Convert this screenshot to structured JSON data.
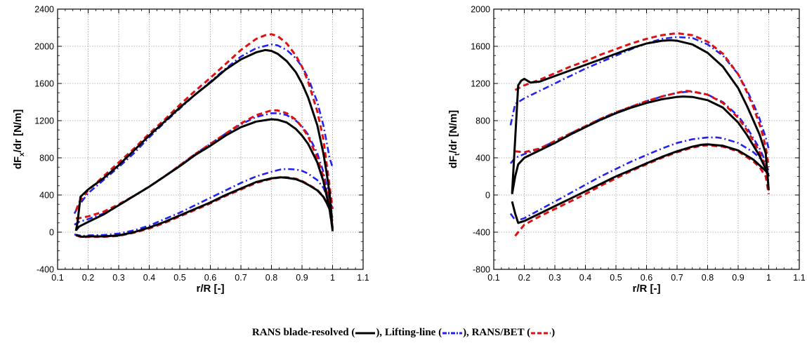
{
  "chart_data": [
    {
      "type": "line",
      "title": "",
      "xlabel": "r/R [-]",
      "ylabel_main": "dF",
      "ylabel_sub": "x",
      "ylabel_rest": "/dr [N/m]",
      "xlim": [
        0.1,
        1.1
      ],
      "ylim": [
        -400,
        2400
      ],
      "xticks": [
        "0.1",
        "0.2",
        "0.3",
        "0.4",
        "0.5",
        "0.6",
        "0.7",
        "0.8",
        "0.9",
        "1",
        "1.1"
      ],
      "yticks": [
        "-400",
        "0",
        "400",
        "800",
        "1200",
        "1600",
        "2000",
        "2400"
      ],
      "grid": true,
      "series": [
        {
          "style": "rans",
          "group": "high",
          "x": [
            0.16,
            0.165,
            0.175,
            0.2,
            0.25,
            0.3,
            0.35,
            0.4,
            0.45,
            0.5,
            0.55,
            0.6,
            0.65,
            0.7,
            0.75,
            0.78,
            0.8,
            0.82,
            0.85,
            0.88,
            0.9,
            0.92,
            0.95,
            0.97,
            0.98,
            0.99,
            0.995,
            1.0
          ],
          "y": [
            15,
            100,
            380,
            460,
            580,
            720,
            880,
            1040,
            1190,
            1340,
            1480,
            1610,
            1750,
            1860,
            1935,
            1960,
            1950,
            1920,
            1840,
            1720,
            1600,
            1450,
            1150,
            850,
            650,
            420,
            250,
            10
          ]
        },
        {
          "style": "ll",
          "group": "high",
          "x": [
            0.155,
            0.17,
            0.2,
            0.25,
            0.3,
            0.35,
            0.4,
            0.45,
            0.5,
            0.55,
            0.6,
            0.65,
            0.7,
            0.75,
            0.8,
            0.82,
            0.85,
            0.88,
            0.9,
            0.92,
            0.95,
            0.97,
            0.98,
            0.99,
            1.0
          ],
          "y": [
            200,
            290,
            420,
            560,
            700,
            850,
            1020,
            1180,
            1330,
            1480,
            1620,
            1760,
            1890,
            1980,
            2020,
            2010,
            1960,
            1870,
            1780,
            1660,
            1400,
            1150,
            980,
            800,
            700
          ]
        },
        {
          "style": "bet",
          "group": "high",
          "x": [
            0.16,
            0.17,
            0.2,
            0.25,
            0.3,
            0.35,
            0.4,
            0.45,
            0.5,
            0.55,
            0.6,
            0.65,
            0.7,
            0.75,
            0.78,
            0.8,
            0.82,
            0.85,
            0.88,
            0.9,
            0.92,
            0.95,
            0.97,
            0.98,
            0.99,
            1.0
          ],
          "y": [
            230,
            320,
            450,
            600,
            750,
            900,
            1060,
            1210,
            1370,
            1520,
            1660,
            1810,
            1960,
            2080,
            2120,
            2130,
            2110,
            2030,
            1900,
            1780,
            1620,
            1300,
            1000,
            750,
            500,
            250
          ]
        },
        {
          "style": "rans",
          "group": "mid",
          "x": [
            0.16,
            0.17,
            0.2,
            0.25,
            0.3,
            0.35,
            0.4,
            0.45,
            0.5,
            0.55,
            0.6,
            0.65,
            0.7,
            0.75,
            0.8,
            0.82,
            0.85,
            0.88,
            0.9,
            0.92,
            0.95,
            0.97,
            0.98,
            0.99,
            1.0
          ],
          "y": [
            20,
            60,
            110,
            190,
            290,
            390,
            490,
            600,
            710,
            830,
            930,
            1040,
            1130,
            1190,
            1215,
            1210,
            1180,
            1110,
            1040,
            950,
            750,
            550,
            400,
            250,
            50
          ]
        },
        {
          "style": "ll",
          "group": "mid",
          "x": [
            0.155,
            0.17,
            0.2,
            0.25,
            0.3,
            0.35,
            0.4,
            0.45,
            0.5,
            0.55,
            0.6,
            0.65,
            0.7,
            0.75,
            0.8,
            0.82,
            0.85,
            0.88,
            0.9,
            0.92,
            0.95,
            0.97,
            0.98,
            0.99,
            1.0
          ],
          "y": [
            80,
            110,
            140,
            200,
            290,
            390,
            490,
            600,
            720,
            840,
            950,
            1060,
            1160,
            1240,
            1280,
            1280,
            1260,
            1200,
            1140,
            1050,
            850,
            650,
            500,
            350,
            250
          ]
        },
        {
          "style": "bet",
          "group": "mid",
          "x": [
            0.16,
            0.17,
            0.2,
            0.25,
            0.3,
            0.35,
            0.4,
            0.45,
            0.5,
            0.55,
            0.6,
            0.65,
            0.7,
            0.75,
            0.8,
            0.82,
            0.85,
            0.88,
            0.9,
            0.92,
            0.95,
            0.97,
            0.98,
            0.99,
            1.0
          ],
          "y": [
            150,
            150,
            170,
            220,
            300,
            390,
            490,
            600,
            720,
            840,
            950,
            1060,
            1170,
            1260,
            1310,
            1310,
            1280,
            1210,
            1130,
            1030,
            800,
            600,
            450,
            300,
            100
          ]
        },
        {
          "style": "rans",
          "group": "low",
          "x": [
            0.16,
            0.18,
            0.2,
            0.25,
            0.3,
            0.35,
            0.4,
            0.45,
            0.5,
            0.55,
            0.6,
            0.65,
            0.7,
            0.75,
            0.8,
            0.83,
            0.85,
            0.88,
            0.9,
            0.92,
            0.95,
            0.97,
            0.98,
            0.99,
            1.0
          ],
          "y": [
            -30,
            -50,
            -45,
            -45,
            -35,
            0,
            50,
            110,
            180,
            250,
            320,
            400,
            470,
            540,
            580,
            590,
            585,
            570,
            545,
            510,
            450,
            380,
            320,
            250,
            30
          ]
        },
        {
          "style": "ll",
          "group": "low",
          "x": [
            0.155,
            0.18,
            0.2,
            0.25,
            0.3,
            0.35,
            0.4,
            0.45,
            0.5,
            0.55,
            0.6,
            0.65,
            0.7,
            0.75,
            0.8,
            0.83,
            0.85,
            0.88,
            0.9,
            0.92,
            0.95,
            0.97,
            0.98,
            0.99,
            1.0
          ],
          "y": [
            -25,
            -40,
            -35,
            -30,
            -15,
            20,
            70,
            140,
            210,
            290,
            370,
            450,
            530,
            600,
            650,
            675,
            680,
            675,
            660,
            630,
            560,
            480,
            400,
            300,
            150
          ]
        },
        {
          "style": "bet",
          "group": "low",
          "x": [
            0.16,
            0.18,
            0.2,
            0.25,
            0.3,
            0.35,
            0.4,
            0.45,
            0.5,
            0.55,
            0.6,
            0.65,
            0.7,
            0.75,
            0.8,
            0.83,
            0.85,
            0.88,
            0.9,
            0.92,
            0.95,
            0.97,
            0.98,
            0.99,
            1.0
          ],
          "y": [
            -35,
            -55,
            -50,
            -50,
            -40,
            -5,
            40,
            100,
            170,
            240,
            310,
            390,
            460,
            530,
            575,
            590,
            590,
            575,
            550,
            515,
            455,
            385,
            320,
            250,
            20
          ]
        }
      ]
    },
    {
      "type": "line",
      "title": "",
      "xlabel": "r/R [-]",
      "ylabel_main": "dF",
      "ylabel_sub": "t",
      "ylabel_rest": "/dr [N/m]",
      "xlim": [
        0.1,
        1.1
      ],
      "ylim": [
        -800,
        2000
      ],
      "xticks": [
        "0.1",
        "0.2",
        "0.3",
        "0.4",
        "0.5",
        "0.6",
        "0.7",
        "0.8",
        "0.9",
        "1",
        "1.1"
      ],
      "yticks": [
        "-800",
        "-400",
        "0",
        "400",
        "800",
        "1200",
        "1600",
        "2000"
      ],
      "grid": true,
      "series": [
        {
          "style": "rans",
          "group": "high",
          "x": [
            0.16,
            0.17,
            0.18,
            0.19,
            0.2,
            0.22,
            0.25,
            0.3,
            0.35,
            0.4,
            0.45,
            0.5,
            0.55,
            0.6,
            0.65,
            0.68,
            0.7,
            0.75,
            0.8,
            0.85,
            0.9,
            0.93,
            0.95,
            0.97,
            0.98,
            0.99,
            1.0
          ],
          "y": [
            20,
            600,
            1180,
            1230,
            1250,
            1210,
            1220,
            1280,
            1340,
            1400,
            1460,
            1520,
            1580,
            1630,
            1660,
            1665,
            1660,
            1620,
            1530,
            1380,
            1150,
            950,
            800,
            650,
            550,
            450,
            50
          ]
        },
        {
          "style": "ll",
          "group": "high",
          "x": [
            0.155,
            0.17,
            0.2,
            0.25,
            0.3,
            0.35,
            0.4,
            0.45,
            0.5,
            0.55,
            0.6,
            0.65,
            0.7,
            0.75,
            0.8,
            0.85,
            0.9,
            0.93,
            0.95,
            0.97,
            0.98,
            0.99,
            1.0
          ],
          "y": [
            750,
            980,
            1040,
            1120,
            1200,
            1280,
            1360,
            1430,
            1500,
            1570,
            1630,
            1680,
            1700,
            1690,
            1620,
            1500,
            1300,
            1120,
            980,
            820,
            720,
            620,
            500
          ]
        },
        {
          "style": "bet",
          "group": "high",
          "x": [
            0.17,
            0.2,
            0.25,
            0.3,
            0.35,
            0.4,
            0.45,
            0.5,
            0.55,
            0.6,
            0.65,
            0.7,
            0.75,
            0.8,
            0.85,
            0.9,
            0.93,
            0.95,
            0.97,
            0.98,
            0.99,
            1.0
          ],
          "y": [
            1130,
            1180,
            1240,
            1310,
            1380,
            1440,
            1510,
            1570,
            1630,
            1680,
            1720,
            1740,
            1720,
            1650,
            1520,
            1300,
            1100,
            940,
            760,
            650,
            520,
            300
          ]
        },
        {
          "style": "rans",
          "group": "mid",
          "x": [
            0.16,
            0.17,
            0.18,
            0.2,
            0.25,
            0.3,
            0.35,
            0.4,
            0.45,
            0.5,
            0.55,
            0.6,
            0.65,
            0.7,
            0.72,
            0.75,
            0.8,
            0.85,
            0.9,
            0.93,
            0.95,
            0.97,
            0.98,
            0.99,
            1.0
          ],
          "y": [
            10,
            200,
            330,
            400,
            480,
            560,
            650,
            730,
            810,
            880,
            940,
            990,
            1030,
            1055,
            1060,
            1055,
            1020,
            940,
            780,
            640,
            530,
            420,
            350,
            280,
            200
          ]
        },
        {
          "style": "ll",
          "group": "mid",
          "x": [
            0.155,
            0.17,
            0.2,
            0.25,
            0.3,
            0.35,
            0.4,
            0.45,
            0.5,
            0.55,
            0.6,
            0.65,
            0.7,
            0.73,
            0.75,
            0.8,
            0.85,
            0.9,
            0.93,
            0.95,
            0.97,
            0.98,
            0.99,
            1.0
          ],
          "y": [
            340,
            400,
            440,
            500,
            580,
            660,
            740,
            820,
            890,
            950,
            1010,
            1060,
            1100,
            1110,
            1110,
            1080,
            1000,
            850,
            720,
            610,
            500,
            430,
            350,
            250
          ]
        },
        {
          "style": "bet",
          "group": "mid",
          "x": [
            0.17,
            0.2,
            0.25,
            0.3,
            0.35,
            0.4,
            0.45,
            0.5,
            0.55,
            0.6,
            0.65,
            0.7,
            0.73,
            0.75,
            0.8,
            0.85,
            0.9,
            0.93,
            0.95,
            0.97,
            0.98,
            0.99,
            1.0
          ],
          "y": [
            470,
            460,
            500,
            580,
            660,
            740,
            820,
            890,
            950,
            1010,
            1060,
            1100,
            1120,
            1115,
            1080,
            990,
            830,
            690,
            580,
            460,
            380,
            300,
            100
          ]
        },
        {
          "style": "rans",
          "group": "low",
          "x": [
            0.16,
            0.17,
            0.18,
            0.2,
            0.25,
            0.3,
            0.35,
            0.4,
            0.45,
            0.5,
            0.55,
            0.6,
            0.65,
            0.7,
            0.75,
            0.78,
            0.8,
            0.85,
            0.9,
            0.95,
            0.97,
            0.98,
            0.99,
            1.0
          ],
          "y": [
            -70,
            -200,
            -300,
            -280,
            -200,
            -120,
            -40,
            40,
            120,
            200,
            270,
            340,
            410,
            470,
            520,
            540,
            545,
            530,
            480,
            380,
            320,
            290,
            260,
            220
          ]
        },
        {
          "style": "ll",
          "group": "low",
          "x": [
            0.155,
            0.17,
            0.18,
            0.2,
            0.25,
            0.3,
            0.35,
            0.4,
            0.45,
            0.5,
            0.55,
            0.6,
            0.65,
            0.7,
            0.75,
            0.8,
            0.83,
            0.85,
            0.9,
            0.95,
            0.97,
            0.98,
            0.99,
            1.0
          ],
          "y": [
            -200,
            -270,
            -270,
            -250,
            -160,
            -70,
            20,
            110,
            200,
            280,
            360,
            430,
            500,
            560,
            600,
            620,
            620,
            610,
            560,
            460,
            400,
            350,
            300,
            200
          ]
        },
        {
          "style": "bet",
          "group": "low",
          "x": [
            0.17,
            0.18,
            0.2,
            0.25,
            0.3,
            0.35,
            0.4,
            0.45,
            0.5,
            0.55,
            0.6,
            0.65,
            0.7,
            0.75,
            0.78,
            0.8,
            0.85,
            0.9,
            0.95,
            0.97,
            0.98,
            0.99,
            1.0
          ],
          "y": [
            -440,
            -400,
            -320,
            -230,
            -150,
            -70,
            10,
            100,
            180,
            260,
            330,
            400,
            460,
            510,
            530,
            535,
            520,
            470,
            360,
            300,
            250,
            200,
            10
          ]
        }
      ]
    }
  ],
  "legend": {
    "entries": [
      {
        "pre": "RANS blade-resolved (",
        "post": "),",
        "style": "rans"
      },
      {
        "pre": "Lifting-line (",
        "post": "),",
        "style": "ll"
      },
      {
        "pre": "RANS/BET (",
        "post": ")",
        "style": "bet"
      }
    ]
  },
  "styles": {
    "rans": {
      "color": "#000000",
      "dash": "none"
    },
    "ll": {
      "color": "#2222ee",
      "dash": "dashdot"
    },
    "bet": {
      "color": "#dd1111",
      "dash": "dashed"
    }
  }
}
